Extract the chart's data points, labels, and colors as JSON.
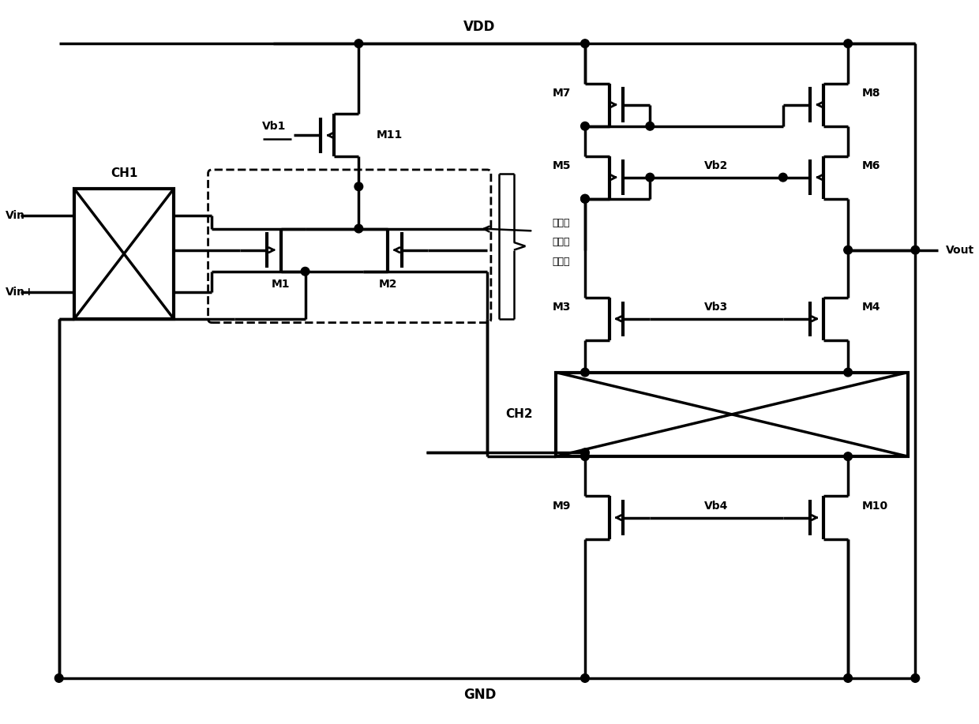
{
  "bg": "#ffffff",
  "lc": "#000000",
  "lw": 2.5,
  "fw": 12.4,
  "fh": 9.17,
  "VDD_label": "VDD",
  "GND_label": "GND",
  "Vin_minus": "Vin-",
  "Vin_plus": "Vin+",
  "Vb1": "Vb1",
  "Vb2": "Vb2",
  "Vb3": "Vb3",
  "Vb4": "Vb4",
  "Vout": "Vout",
  "CH1": "CH1",
  "CH2": "CH2",
  "M1": "M1",
  "M2": "M2",
  "M3": "M3",
  "M4": "M4",
  "M5": "M5",
  "M6": "M6",
  "M7": "M7",
  "M8": "M8",
  "M9": "M9",
  "M10": "M10",
  "M11": "M11",
  "brace_label_1": "衄底驱",
  "brace_label_2": "动输入",
  "brace_label_3": "差分对"
}
